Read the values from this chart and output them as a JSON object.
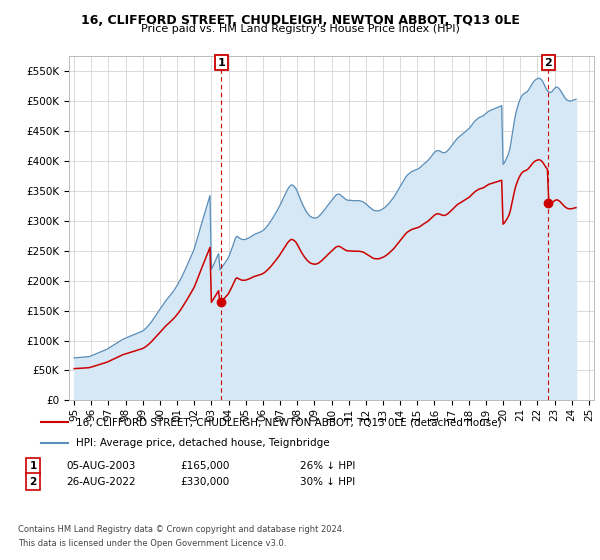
{
  "title": "16, CLIFFORD STREET, CHUDLEIGH, NEWTON ABBOT, TQ13 0LE",
  "subtitle": "Price paid vs. HM Land Registry's House Price Index (HPI)",
  "ylim": [
    0,
    575000
  ],
  "yticks": [
    0,
    50000,
    100000,
    150000,
    200000,
    250000,
    300000,
    350000,
    400000,
    450000,
    500000,
    550000
  ],
  "ytick_labels": [
    "£0",
    "£50K",
    "£100K",
    "£150K",
    "£200K",
    "£250K",
    "£300K",
    "£350K",
    "£400K",
    "£450K",
    "£500K",
    "£550K"
  ],
  "legend_entries": [
    "16, CLIFFORD STREET, CHUDLEIGH, NEWTON ABBOT, TQ13 0LE (detached house)",
    "HPI: Average price, detached house, Teignbridge"
  ],
  "ann1_label": "1",
  "ann1_date": "05-AUG-2003",
  "ann1_price": "£165,000",
  "ann1_hpi": "26% ↓ HPI",
  "ann2_label": "2",
  "ann2_date": "26-AUG-2022",
  "ann2_price": "£330,000",
  "ann2_hpi": "30% ↓ HPI",
  "footer1": "Contains HM Land Registry data © Crown copyright and database right 2024.",
  "footer2": "This data is licensed under the Open Government Licence v3.0.",
  "house_color": "#cc0000",
  "hpi_color": "#5b8db8",
  "hpi_fill_color": "#d6e8f5",
  "vline_color": "#cc0000",
  "grid_color": "#cccccc",
  "bg_color": "#ffffff",
  "house_sale1_x": 2003.58,
  "house_sale1_y": 165000,
  "house_sale2_x": 2022.64,
  "house_sale2_y": 330000,
  "xlim_left": 1994.7,
  "xlim_right": 2025.3,
  "hpi_data_x": [
    1995.0,
    1995.083,
    1995.167,
    1995.25,
    1995.333,
    1995.417,
    1995.5,
    1995.583,
    1995.667,
    1995.75,
    1995.833,
    1995.917,
    1996.0,
    1996.083,
    1996.167,
    1996.25,
    1996.333,
    1996.417,
    1996.5,
    1996.583,
    1996.667,
    1996.75,
    1996.833,
    1996.917,
    1997.0,
    1997.083,
    1997.167,
    1997.25,
    1997.333,
    1997.417,
    1997.5,
    1997.583,
    1997.667,
    1997.75,
    1997.833,
    1997.917,
    1998.0,
    1998.083,
    1998.167,
    1998.25,
    1998.333,
    1998.417,
    1998.5,
    1998.583,
    1998.667,
    1998.75,
    1998.833,
    1998.917,
    1999.0,
    1999.083,
    1999.167,
    1999.25,
    1999.333,
    1999.417,
    1999.5,
    1999.583,
    1999.667,
    1999.75,
    1999.833,
    1999.917,
    2000.0,
    2000.083,
    2000.167,
    2000.25,
    2000.333,
    2000.417,
    2000.5,
    2000.583,
    2000.667,
    2000.75,
    2000.833,
    2000.917,
    2001.0,
    2001.083,
    2001.167,
    2001.25,
    2001.333,
    2001.417,
    2001.5,
    2001.583,
    2001.667,
    2001.75,
    2001.833,
    2001.917,
    2002.0,
    2002.083,
    2002.167,
    2002.25,
    2002.333,
    2002.417,
    2002.5,
    2002.583,
    2002.667,
    2002.75,
    2002.833,
    2002.917,
    2003.0,
    2003.083,
    2003.167,
    2003.25,
    2003.333,
    2003.417,
    2003.5,
    2003.583,
    2003.667,
    2003.75,
    2003.833,
    2003.917,
    2004.0,
    2004.083,
    2004.167,
    2004.25,
    2004.333,
    2004.417,
    2004.5,
    2004.583,
    2004.667,
    2004.75,
    2004.833,
    2004.917,
    2005.0,
    2005.083,
    2005.167,
    2005.25,
    2005.333,
    2005.417,
    2005.5,
    2005.583,
    2005.667,
    2005.75,
    2005.833,
    2005.917,
    2006.0,
    2006.083,
    2006.167,
    2006.25,
    2006.333,
    2006.417,
    2006.5,
    2006.583,
    2006.667,
    2006.75,
    2006.833,
    2006.917,
    2007.0,
    2007.083,
    2007.167,
    2007.25,
    2007.333,
    2007.417,
    2007.5,
    2007.583,
    2007.667,
    2007.75,
    2007.833,
    2007.917,
    2008.0,
    2008.083,
    2008.167,
    2008.25,
    2008.333,
    2008.417,
    2008.5,
    2008.583,
    2008.667,
    2008.75,
    2008.833,
    2008.917,
    2009.0,
    2009.083,
    2009.167,
    2009.25,
    2009.333,
    2009.417,
    2009.5,
    2009.583,
    2009.667,
    2009.75,
    2009.833,
    2009.917,
    2010.0,
    2010.083,
    2010.167,
    2010.25,
    2010.333,
    2010.417,
    2010.5,
    2010.583,
    2010.667,
    2010.75,
    2010.833,
    2010.917,
    2011.0,
    2011.083,
    2011.167,
    2011.25,
    2011.333,
    2011.417,
    2011.5,
    2011.583,
    2011.667,
    2011.75,
    2011.833,
    2011.917,
    2012.0,
    2012.083,
    2012.167,
    2012.25,
    2012.333,
    2012.417,
    2012.5,
    2012.583,
    2012.667,
    2012.75,
    2012.833,
    2012.917,
    2013.0,
    2013.083,
    2013.167,
    2013.25,
    2013.333,
    2013.417,
    2013.5,
    2013.583,
    2013.667,
    2013.75,
    2013.833,
    2013.917,
    2014.0,
    2014.083,
    2014.167,
    2014.25,
    2014.333,
    2014.417,
    2014.5,
    2014.583,
    2014.667,
    2014.75,
    2014.833,
    2014.917,
    2015.0,
    2015.083,
    2015.167,
    2015.25,
    2015.333,
    2015.417,
    2015.5,
    2015.583,
    2015.667,
    2015.75,
    2015.833,
    2015.917,
    2016.0,
    2016.083,
    2016.167,
    2016.25,
    2016.333,
    2016.417,
    2016.5,
    2016.583,
    2016.667,
    2016.75,
    2016.833,
    2016.917,
    2017.0,
    2017.083,
    2017.167,
    2017.25,
    2017.333,
    2017.417,
    2017.5,
    2017.583,
    2017.667,
    2017.75,
    2017.833,
    2017.917,
    2018.0,
    2018.083,
    2018.167,
    2018.25,
    2018.333,
    2018.417,
    2018.5,
    2018.583,
    2018.667,
    2018.75,
    2018.833,
    2018.917,
    2019.0,
    2019.083,
    2019.167,
    2019.25,
    2019.333,
    2019.417,
    2019.5,
    2019.583,
    2019.667,
    2019.75,
    2019.833,
    2019.917,
    2020.0,
    2020.083,
    2020.167,
    2020.25,
    2020.333,
    2020.417,
    2020.5,
    2020.583,
    2020.667,
    2020.75,
    2020.833,
    2020.917,
    2021.0,
    2021.083,
    2021.167,
    2021.25,
    2021.333,
    2021.417,
    2021.5,
    2021.583,
    2021.667,
    2021.75,
    2021.833,
    2021.917,
    2022.0,
    2022.083,
    2022.167,
    2022.25,
    2022.333,
    2022.417,
    2022.5,
    2022.583,
    2022.667,
    2022.75,
    2022.833,
    2022.917,
    2023.0,
    2023.083,
    2023.167,
    2023.25,
    2023.333,
    2023.417,
    2023.5,
    2023.583,
    2023.667,
    2023.75,
    2023.833,
    2023.917,
    2024.0,
    2024.083,
    2024.167,
    2024.25
  ],
  "hpi_data_y": [
    71000,
    71200,
    71400,
    71600,
    71800,
    72000,
    72200,
    72400,
    72600,
    72800,
    73000,
    73500,
    74500,
    75500,
    76500,
    77500,
    78500,
    79500,
    80500,
    81500,
    82500,
    83500,
    84500,
    85500,
    87000,
    88500,
    90000,
    91500,
    93000,
    94500,
    96000,
    97500,
    99000,
    100500,
    102000,
    103000,
    104000,
    105000,
    106000,
    107000,
    108000,
    109000,
    110000,
    111000,
    112000,
    113000,
    114000,
    115000,
    116000,
    118000,
    120000,
    122500,
    125000,
    128000,
    131000,
    134500,
    138000,
    141500,
    145000,
    148500,
    152000,
    155500,
    159000,
    162500,
    166000,
    169000,
    172000,
    175000,
    178000,
    181000,
    184500,
    188000,
    192000,
    196000,
    200500,
    205000,
    210000,
    215000,
    220000,
    225500,
    231000,
    236500,
    242000,
    247000,
    253000,
    261000,
    269000,
    277500,
    286000,
    294000,
    302000,
    310000,
    318000,
    326000,
    334000,
    342000,
    219000,
    224000,
    229000,
    234500,
    240000,
    245000,
    218000,
    221000,
    224500,
    228000,
    231500,
    235000,
    239000,
    245000,
    251500,
    258000,
    265000,
    272000,
    274000,
    272000,
    270500,
    269000,
    268500,
    268500,
    269000,
    270000,
    271000,
    272500,
    274000,
    275500,
    277000,
    278000,
    279000,
    280000,
    281000,
    282000,
    283500,
    285500,
    288000,
    291000,
    294000,
    297500,
    301000,
    305000,
    309000,
    313000,
    317000,
    321500,
    326000,
    331000,
    336000,
    341000,
    346000,
    351000,
    355000,
    358000,
    360000,
    359000,
    357000,
    354000,
    349000,
    343000,
    337000,
    331000,
    326000,
    321000,
    317000,
    313000,
    310000,
    307500,
    306000,
    305000,
    304500,
    304500,
    305500,
    307000,
    309500,
    312000,
    315000,
    318000,
    321000,
    324500,
    327500,
    330500,
    333500,
    336500,
    339500,
    342500,
    344000,
    344500,
    343500,
    341500,
    339500,
    337500,
    335500,
    334500,
    334000,
    334000,
    334000,
    333500,
    333500,
    333500,
    333500,
    333500,
    333000,
    332500,
    331500,
    330000,
    328000,
    326000,
    324000,
    322000,
    320000,
    318000,
    317000,
    316500,
    316500,
    316500,
    317500,
    318500,
    320000,
    321500,
    323500,
    326000,
    328500,
    331500,
    334500,
    337500,
    341000,
    345000,
    349000,
    353000,
    357000,
    361000,
    365000,
    369000,
    373000,
    376000,
    378000,
    380000,
    382000,
    383000,
    384000,
    385000,
    386000,
    387000,
    389000,
    391000,
    393500,
    395500,
    397500,
    399500,
    402000,
    405000,
    408000,
    411000,
    414000,
    416000,
    417000,
    417000,
    416000,
    414500,
    413500,
    413500,
    414500,
    416500,
    419000,
    422000,
    425000,
    428000,
    431500,
    434500,
    437500,
    439500,
    441500,
    443500,
    445500,
    447500,
    449500,
    451500,
    453500,
    456000,
    459500,
    462500,
    465500,
    468000,
    470000,
    472000,
    473000,
    474000,
    475000,
    477000,
    479000,
    481000,
    483000,
    484000,
    485000,
    486000,
    487000,
    488000,
    489000,
    490000,
    491000,
    492000,
    394000,
    397000,
    402000,
    407000,
    413000,
    423000,
    438000,
    453000,
    468000,
    480000,
    489000,
    497000,
    503000,
    508000,
    511000,
    513000,
    514000,
    516000,
    519000,
    523000,
    527000,
    531000,
    534000,
    536000,
    537000,
    538000,
    537000,
    535000,
    531000,
    526000,
    521000,
    517000,
    515000,
    514000,
    515000,
    518000,
    521000,
    523000,
    523000,
    521000,
    518000,
    514000,
    510000,
    506000,
    503000,
    501000,
    500000,
    500000,
    500000,
    501000,
    502000,
    503000
  ]
}
